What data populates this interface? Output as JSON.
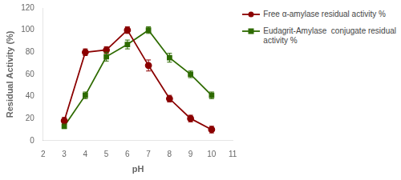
{
  "chart_data": {
    "type": "line",
    "x": [
      3,
      4,
      5,
      6,
      7,
      8,
      9,
      10
    ],
    "series": [
      {
        "name": "Free α-amylase residual activity %",
        "color": "#8B0000",
        "values": [
          18,
          80,
          82,
          100,
          68,
          38,
          20,
          10
        ],
        "errors": [
          3,
          3,
          3,
          3,
          5,
          3,
          3,
          3
        ],
        "marker": "circle",
        "line_style": "solid"
      },
      {
        "name": "Eudagrit-Amylase  conjugate residual\nactivity %",
        "color": "#2E6B00",
        "values": [
          13,
          41,
          76,
          87,
          100,
          75,
          60,
          41
        ],
        "errors": [
          2,
          3,
          4,
          4,
          3,
          4,
          3,
          3
        ],
        "marker": "square",
        "line_style": "solid"
      }
    ],
    "xlabel": "pH",
    "ylabel": "Residual Activity (%)",
    "xlim": [
      2,
      11
    ],
    "xticks": [
      2,
      3,
      4,
      5,
      6,
      7,
      8,
      9,
      10,
      11
    ],
    "ylim": [
      0,
      120
    ],
    "yticks": [
      0,
      20,
      40,
      60,
      80,
      100,
      120
    ],
    "grid": false,
    "legend": "right"
  }
}
